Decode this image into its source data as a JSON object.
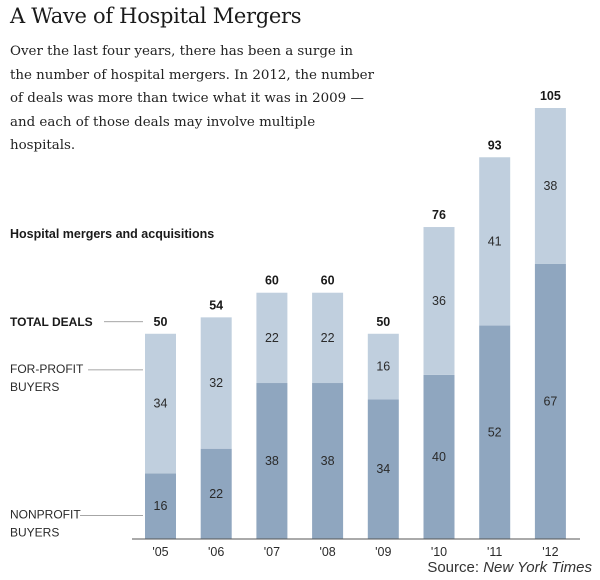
{
  "title": "A Wave of Hospital Mergers",
  "intro": "Over the last four years, there has been a surge in the number of hospital mergers. In 2012, the number of deals was more than twice what it was in 2009 — and each of those deals may involve multiple hospitals.",
  "source": {
    "prefix": "Source:",
    "name": "New York Times"
  },
  "chart_data": {
    "type": "bar",
    "stacked": true,
    "title": "Hospital mergers and acquisitions",
    "categories": [
      "'05",
      "'06",
      "'07",
      "'08",
      "'09",
      "'10",
      "'11",
      "'12"
    ],
    "series": [
      {
        "name": "NONPROFIT BUYERS",
        "values": [
          16,
          22,
          38,
          38,
          34,
          40,
          52,
          67
        ],
        "color": "#8fa6bf"
      },
      {
        "name": "FOR-PROFIT BUYERS",
        "values": [
          34,
          32,
          22,
          22,
          16,
          36,
          41,
          38
        ],
        "color": "#c0cfde"
      }
    ],
    "totals": [
      50,
      54,
      60,
      60,
      50,
      76,
      93,
      105
    ],
    "total_label": "TOTAL DEALS",
    "ylim": [
      0,
      105
    ],
    "grid": false
  }
}
